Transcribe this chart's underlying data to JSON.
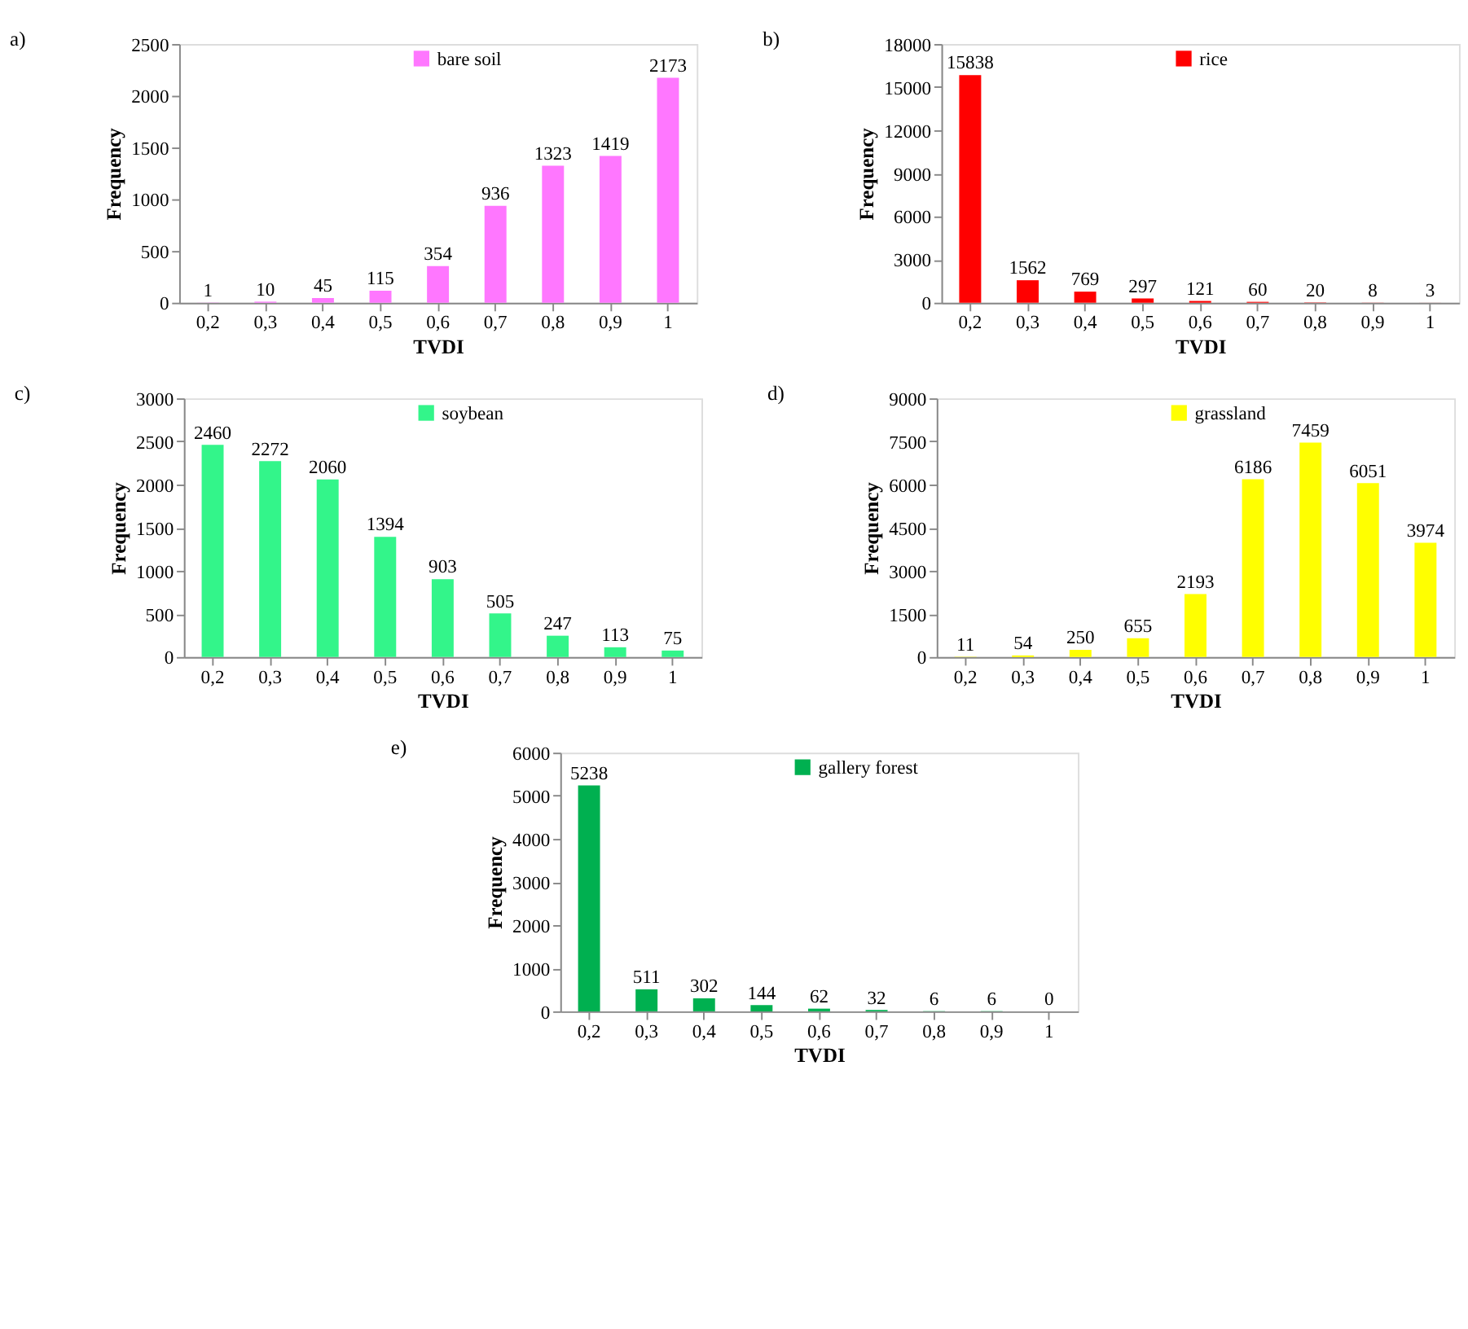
{
  "chart_data": [
    {
      "type": "bar",
      "title": "a)",
      "xlabel": "TVDI",
      "ylabel": "Frequency",
      "categories": [
        "0,2",
        "0,3",
        "0,4",
        "0,5",
        "0,6",
        "0,7",
        "0,8",
        "0,9",
        "1"
      ],
      "series": [
        {
          "name": "bare soil",
          "color": "#ff77ff",
          "values": [
            1,
            10,
            45,
            115,
            354,
            936,
            1323,
            1419,
            2173
          ]
        }
      ],
      "ylim": [
        0,
        2500
      ],
      "yticks": [
        0,
        500,
        1000,
        1500,
        2000,
        2500
      ],
      "data_labels": true,
      "legend": "top",
      "grid": false
    },
    {
      "type": "bar",
      "title": "b)",
      "xlabel": "TVDI",
      "ylabel": "Frequency",
      "categories": [
        "0,2",
        "0,3",
        "0,4",
        "0,5",
        "0,6",
        "0,7",
        "0,8",
        "0,9",
        "1"
      ],
      "series": [
        {
          "name": "rice",
          "color": "#ff0000",
          "values": [
            15838,
            1562,
            769,
            297,
            121,
            60,
            20,
            8,
            3
          ]
        }
      ],
      "ylim": [
        0,
        18000
      ],
      "yticks": [
        0,
        3000,
        6000,
        9000,
        12000,
        15000,
        18000
      ],
      "data_labels": true,
      "legend": "top",
      "grid": false
    },
    {
      "type": "bar",
      "title": "c)",
      "xlabel": "TVDI",
      "ylabel": "Frequency",
      "categories": [
        "0,2",
        "0,3",
        "0,4",
        "0,5",
        "0,6",
        "0,7",
        "0,8",
        "0,9",
        "1"
      ],
      "series": [
        {
          "name": "soybean",
          "color": "#33f58a",
          "values": [
            2460,
            2272,
            2060,
            1394,
            903,
            505,
            247,
            113,
            75
          ]
        }
      ],
      "ylim": [
        0,
        3000
      ],
      "yticks": [
        0,
        500,
        1000,
        1500,
        2000,
        2500,
        3000
      ],
      "data_labels": true,
      "legend": "top",
      "grid": false
    },
    {
      "type": "bar",
      "title": "d)",
      "xlabel": "TVDI",
      "ylabel": "Frequency",
      "categories": [
        "0,2",
        "0,3",
        "0,4",
        "0,5",
        "0,6",
        "0,7",
        "0,8",
        "0,9",
        "1"
      ],
      "series": [
        {
          "name": "grassland",
          "color": "#ffff00",
          "values": [
            11,
            54,
            250,
            655,
            2193,
            6186,
            7459,
            6051,
            3974
          ]
        }
      ],
      "ylim": [
        0,
        9000
      ],
      "yticks": [
        0,
        1500,
        3000,
        4500,
        6000,
        7500,
        9000
      ],
      "data_labels": true,
      "legend": "top",
      "grid": false
    },
    {
      "type": "bar",
      "title": "e)",
      "xlabel": "TVDI",
      "ylabel": "Frequency",
      "categories": [
        "0,2",
        "0,3",
        "0,4",
        "0,5",
        "0,6",
        "0,7",
        "0,8",
        "0,9",
        "1"
      ],
      "series": [
        {
          "name": "gallery forest",
          "color": "#00b050",
          "values": [
            5238,
            511,
            302,
            144,
            62,
            32,
            6,
            6,
            0
          ]
        }
      ],
      "ylim": [
        0,
        6000
      ],
      "yticks": [
        0,
        1000,
        2000,
        3000,
        4000,
        5000,
        6000
      ],
      "data_labels": true,
      "legend": "top",
      "grid": false
    }
  ]
}
